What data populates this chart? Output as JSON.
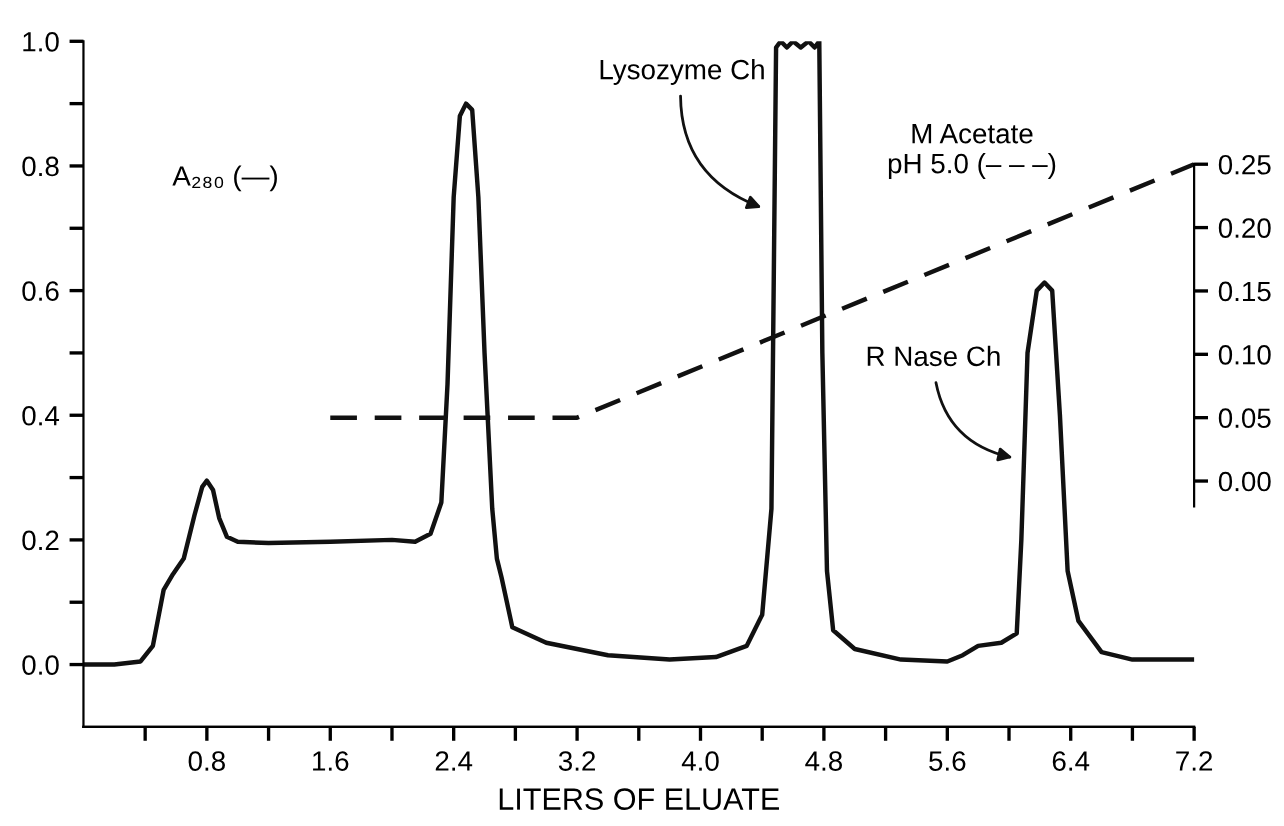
{
  "chart_data": {
    "type": "line",
    "xlabel": "LITERS OF ELUATE",
    "xlim": [
      0,
      7.2
    ],
    "ylim": [
      -0.1,
      1.0
    ],
    "y2lim": [
      -0.194,
      0.347
    ],
    "xticks": [
      {
        "value": 0.4,
        "label": null
      },
      {
        "value": 0.8,
        "label": "0.8"
      },
      {
        "value": 1.2,
        "label": null
      },
      {
        "value": 1.6,
        "label": "1.6"
      },
      {
        "value": 2.0,
        "label": null
      },
      {
        "value": 2.4,
        "label": "2.4"
      },
      {
        "value": 2.8,
        "label": null
      },
      {
        "value": 3.2,
        "label": "3.2"
      },
      {
        "value": 3.6,
        "label": null
      },
      {
        "value": 4.0,
        "label": "4.0"
      },
      {
        "value": 4.4,
        "label": null
      },
      {
        "value": 4.8,
        "label": "4.8"
      },
      {
        "value": 5.2,
        "label": null
      },
      {
        "value": 5.6,
        "label": "5.6"
      },
      {
        "value": 6.0,
        "label": null
      },
      {
        "value": 6.4,
        "label": "6.4"
      },
      {
        "value": 6.8,
        "label": null
      },
      {
        "value": 7.2,
        "label": "7.2"
      }
    ],
    "yticks": [
      {
        "value": 0.0,
        "label": "0.0"
      },
      {
        "value": 0.1,
        "label": null
      },
      {
        "value": 0.2,
        "label": "0.2"
      },
      {
        "value": 0.3,
        "label": null
      },
      {
        "value": 0.4,
        "label": "0.4"
      },
      {
        "value": 0.5,
        "label": null
      },
      {
        "value": 0.6,
        "label": "0.6"
      },
      {
        "value": 0.7,
        "label": null
      },
      {
        "value": 0.8,
        "label": "0.8"
      },
      {
        "value": 0.9,
        "label": null
      },
      {
        "value": 1.0,
        "label": "1.0"
      }
    ],
    "y2ticks": [
      {
        "value": 0.0,
        "label": "0.00"
      },
      {
        "value": 0.05,
        "label": "0.05"
      },
      {
        "value": 0.1,
        "label": "0.10"
      },
      {
        "value": 0.15,
        "label": "0.15"
      },
      {
        "value": 0.2,
        "label": "0.20"
      },
      {
        "value": 0.25,
        "label": "0.25"
      }
    ],
    "grid": false,
    "legend": false,
    "marker": "none",
    "series": [
      {
        "color": "#111111",
        "line_style": "solid",
        "x": [
          0.0,
          0.2,
          0.37,
          0.45,
          0.52,
          0.58,
          0.65,
          0.72,
          0.77,
          0.8,
          0.84,
          0.88,
          0.93,
          1.0,
          1.2,
          1.6,
          2.0,
          2.15,
          2.25,
          2.32,
          2.36,
          2.4,
          2.44,
          2.48,
          2.52,
          2.56,
          2.6,
          2.65,
          2.68,
          2.71,
          2.78,
          3.0,
          3.4,
          3.8,
          4.1,
          4.3,
          4.4,
          4.46,
          4.49,
          4.52,
          4.56,
          4.6,
          4.65,
          4.7,
          4.74,
          4.77,
          4.79,
          4.82,
          4.86,
          5.0,
          5.3,
          5.6,
          5.7,
          5.8,
          5.95,
          6.05,
          6.08,
          6.12,
          6.18,
          6.23,
          6.28,
          6.33,
          6.38,
          6.45,
          6.6,
          6.8,
          7.2
        ],
        "values": [
          0.0,
          0.0,
          0.005,
          0.03,
          0.12,
          0.145,
          0.17,
          0.24,
          0.285,
          0.295,
          0.28,
          0.235,
          0.205,
          0.197,
          0.195,
          0.197,
          0.2,
          0.197,
          0.21,
          0.26,
          0.45,
          0.75,
          0.88,
          0.9,
          0.89,
          0.75,
          0.5,
          0.25,
          0.17,
          0.14,
          0.06,
          0.035,
          0.015,
          0.008,
          0.012,
          0.03,
          0.08,
          0.25,
          0.99,
          1.0,
          0.99,
          1.0,
          0.99,
          1.0,
          0.99,
          1.0,
          0.5,
          0.15,
          0.055,
          0.025,
          0.008,
          0.005,
          0.015,
          0.03,
          0.035,
          0.05,
          0.2,
          0.5,
          0.6,
          0.613,
          0.6,
          0.4,
          0.15,
          0.07,
          0.02,
          0.008,
          0.008
        ]
      },
      {
        "color": "#111111",
        "line_style": "dashed",
        "axis": "y2",
        "x": [
          1.6,
          3.2,
          7.2
        ],
        "values": [
          0.05,
          0.05,
          0.25
        ]
      }
    ],
    "annotations": [
      "A₂₈₀ (—)",
      "M Acetate\npH 5.0 (– – –)",
      {
        "text": "Lysozyme Ch",
        "x": 4.43,
        "y": 0.73
      },
      {
        "text": "R Nase Ch",
        "x": 6.06,
        "y": 0.33
      }
    ]
  }
}
